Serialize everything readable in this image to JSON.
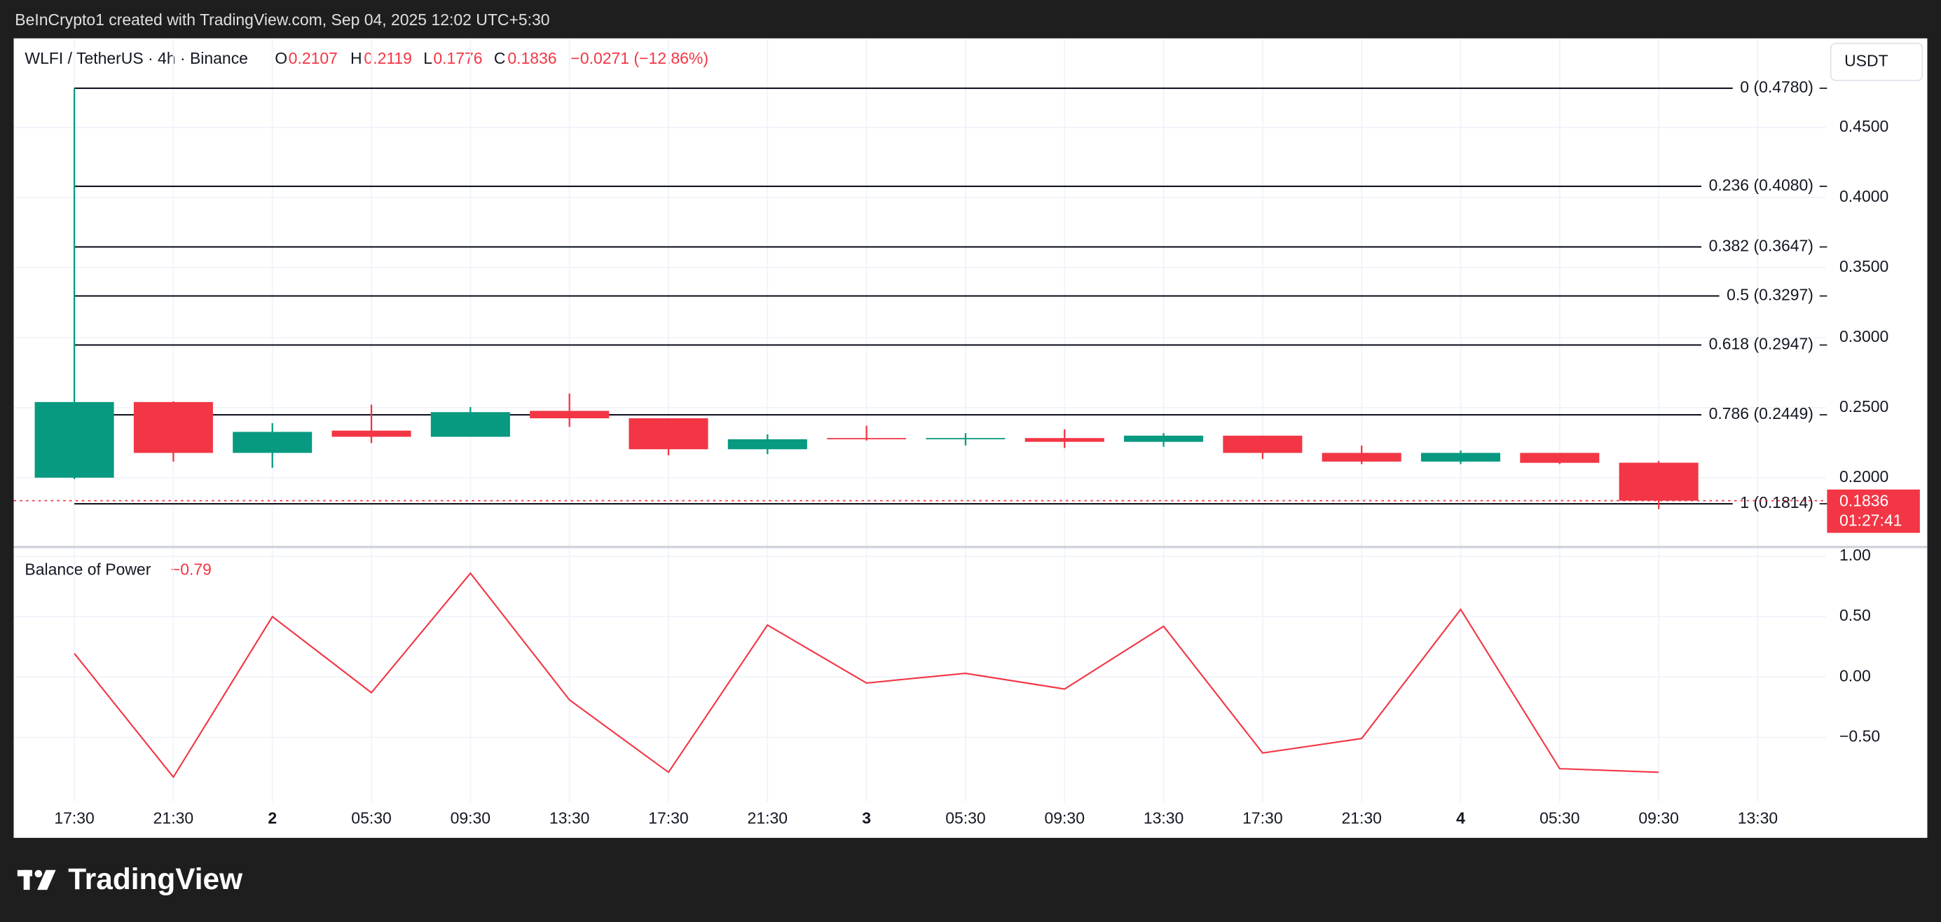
{
  "header": {
    "attribution": "BeInCrypto1 created with TradingView.com, Sep 04, 2025 12:02 UTC+5:30",
    "currency": "USDT",
    "symbol": "WLFI / TetherUS · 4h · Binance",
    "ohlc_labels": [
      "O",
      "H",
      "L",
      "C"
    ],
    "change": "−0.0271 (−12.86%)"
  },
  "footer": {
    "brand": "TradingView"
  },
  "chart_data": [
    {
      "type": "candlestick",
      "categories": [
        "17:30",
        "21:30",
        "2",
        "05:30",
        "09:30",
        "13:30",
        "17:30",
        "21:30",
        "3",
        "05:30",
        "09:30",
        "13:30",
        "17:30",
        "21:30",
        "4",
        "05:30",
        "09:30",
        "13:30"
      ],
      "open": [
        0.2,
        0.254,
        0.2177,
        0.2336,
        0.2292,
        0.2477,
        0.2424,
        0.2203,
        0.2283,
        0.2274,
        0.2283,
        0.2256,
        0.23,
        0.2177,
        0.2115,
        0.2177,
        0.2107,
        null
      ],
      "high": [
        0.478,
        0.2545,
        0.2389,
        0.2521,
        0.2504,
        0.2601,
        0.2424,
        0.2309,
        0.2371,
        0.2318,
        0.2345,
        0.2318,
        0.23,
        0.223,
        0.2194,
        0.2177,
        0.2119,
        null
      ],
      "low": [
        0.199,
        0.2115,
        0.2071,
        0.2247,
        0.2292,
        0.2362,
        0.2159,
        0.2168,
        0.2265,
        0.223,
        0.2212,
        0.2221,
        0.2133,
        0.2097,
        0.2097,
        0.2097,
        0.1776,
        null
      ],
      "close": [
        0.254,
        0.2177,
        0.2327,
        0.2292,
        0.2468,
        0.2424,
        0.2203,
        0.2274,
        0.2274,
        0.2283,
        0.2256,
        0.23,
        0.2177,
        0.2115,
        0.2177,
        0.2106,
        0.1836,
        null
      ],
      "up_color": "#089981",
      "down_color": "#f23645",
      "ylim": [
        0.1514,
        0.5136
      ],
      "yticks": [
        {
          "value": 0.2,
          "label": "0.2000"
        },
        {
          "value": 0.25,
          "label": "0.2500"
        },
        {
          "value": 0.3,
          "label": "0.3000"
        },
        {
          "value": 0.35,
          "label": "0.3500"
        },
        {
          "value": 0.4,
          "label": "0.4000"
        },
        {
          "value": 0.45,
          "label": "0.4500"
        }
      ],
      "fib_levels": [
        {
          "value": 0.478,
          "label": "0 (0.4780)"
        },
        {
          "value": 0.408,
          "label": "0.236 (0.4080)"
        },
        {
          "value": 0.3647,
          "label": "0.382 (0.3647)"
        },
        {
          "value": 0.3297,
          "label": "0.5 (0.3297)"
        },
        {
          "value": 0.2947,
          "label": "0.618 (0.2947)"
        },
        {
          "value": 0.2449,
          "label": "0.786 (0.2449)"
        },
        {
          "value": 0.1814,
          "label": "1 (0.1814)"
        }
      ],
      "countdown": "01:27:41",
      "grid": true
    },
    {
      "type": "line",
      "series": [
        {
          "name": "Balance of Power",
          "color": "#f23645",
          "values": [
            0.195,
            -0.83,
            0.5,
            -0.13,
            0.86,
            -0.19,
            -0.79,
            0.43,
            -0.05,
            0.03,
            -0.1,
            0.42,
            -0.63,
            -0.51,
            0.56,
            -0.76,
            -0.79,
            null
          ],
          "last_label": "−0.79"
        }
      ],
      "ylim": [
        -1.036,
        1.067
      ],
      "yticks": [
        {
          "value": 1,
          "label": "1.00"
        },
        {
          "value": 0.5,
          "label": "0.50"
        },
        {
          "value": 0,
          "label": "0.00"
        },
        {
          "value": -0.5,
          "label": "−0.50"
        }
      ],
      "grid": true
    }
  ]
}
